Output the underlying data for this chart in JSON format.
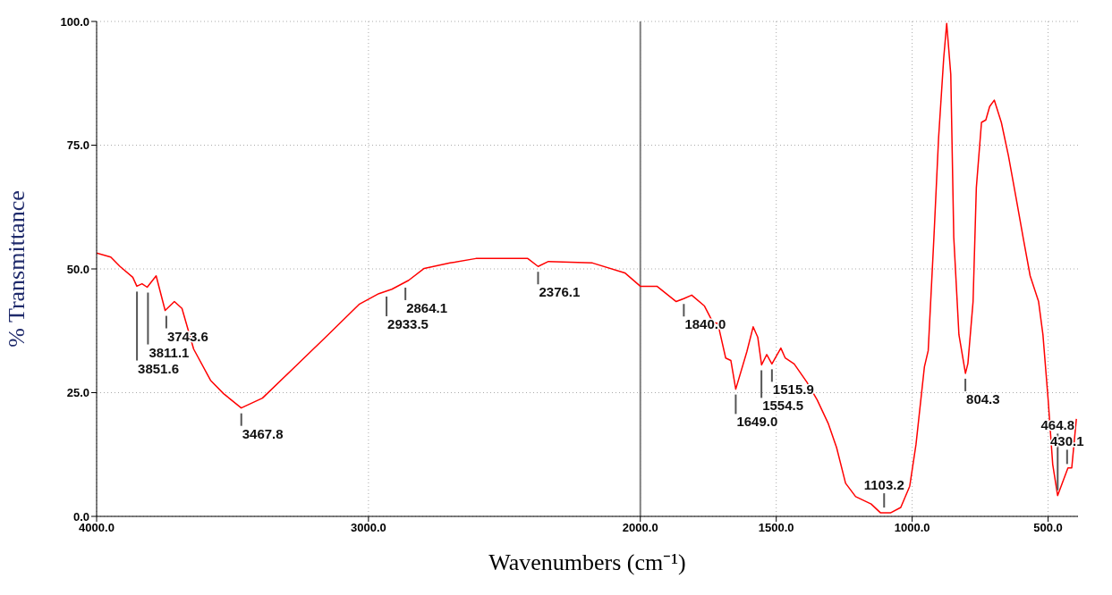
{
  "chart_data": {
    "type": "line",
    "xlabel": "Wavenumbers (cm⁻¹)",
    "ylabel": "% Transmittance",
    "xlim": [
      4000,
      390
    ],
    "ylim": [
      0,
      100
    ],
    "xticks": [
      {
        "value": 4000,
        "label": "4000.0"
      },
      {
        "value": 3000,
        "label": "3000.0"
      },
      {
        "value": 2000,
        "label": "2000.0"
      },
      {
        "value": 1500,
        "label": "1500.0"
      },
      {
        "value": 1000,
        "label": "1000.0"
      },
      {
        "value": 500,
        "label": "500.0"
      }
    ],
    "yticks": [
      {
        "value": 0,
        "label": "0.0"
      },
      {
        "value": 25,
        "label": "25.0"
      },
      {
        "value": 50,
        "label": "50.0"
      },
      {
        "value": 75,
        "label": "75.0"
      },
      {
        "value": 100,
        "label": "100.0"
      }
    ],
    "grid": true,
    "marker": "none",
    "line_style": "solid",
    "ref_lines": [
      {
        "axis": "x",
        "value": 2000,
        "label": null,
        "color": "#808080",
        "line_style": "solid"
      }
    ],
    "series": [
      {
        "color": "#ff0000",
        "x": [
          4000,
          3948,
          3914,
          3867,
          3852,
          3833,
          3814,
          3781,
          3748,
          3714,
          3686,
          3643,
          3581,
          3533,
          3468,
          3390,
          3271,
          3152,
          3033,
          2962,
          2914,
          2852,
          2795,
          2700,
          2605,
          2414,
          2376,
          2338,
          2176,
          2057,
          2000,
          1939,
          1868,
          1840,
          1811,
          1764,
          1733,
          1715,
          1686,
          1667,
          1649,
          1608,
          1585,
          1568,
          1554,
          1535,
          1516,
          1483,
          1467,
          1434,
          1387,
          1349,
          1309,
          1278,
          1245,
          1208,
          1151,
          1116,
          1080,
          1042,
          1009,
          986,
          955,
          941,
          920,
          903,
          884,
          873,
          858,
          847,
          828,
          804,
          795,
          776,
          764,
          745,
          729,
          715,
          698,
          672,
          646,
          618,
          592,
          566,
          535,
          519,
          500,
          483,
          465,
          427,
          413,
          396
        ],
        "values": [
          53.2,
          52.4,
          50.5,
          48.3,
          46.5,
          47,
          46.3,
          48.6,
          41.6,
          43.4,
          42,
          33.8,
          27.5,
          24.8,
          21.9,
          23.9,
          30.2,
          36.5,
          42.9,
          45,
          45.9,
          47.7,
          50.1,
          51.2,
          52.1,
          52.1,
          50.5,
          51.5,
          51.2,
          49.2,
          46.5,
          46.5,
          43.4,
          44,
          44.7,
          42.5,
          39.2,
          39,
          32,
          31.5,
          25.7,
          33.3,
          38.3,
          36.2,
          30.6,
          32.7,
          30.8,
          34,
          32,
          30.8,
          27.1,
          23.5,
          18.8,
          13.9,
          6.7,
          4,
          2.5,
          0.7,
          0.7,
          1.8,
          6.1,
          14.5,
          30.2,
          33.5,
          56.4,
          76.3,
          92.6,
          99.6,
          89.3,
          56.4,
          36.7,
          28.9,
          30.9,
          43.4,
          66.4,
          79.6,
          80.1,
          82.8,
          84.1,
          79.6,
          72.9,
          64.4,
          56.4,
          48.6,
          43.4,
          36.7,
          23.7,
          10.5,
          4.2,
          9.8,
          9.8,
          19.7
        ]
      }
    ],
    "annotations": [
      {
        "text": "3851.6",
        "x": 3851.6,
        "y": 46.5
      },
      {
        "text": "3811.1",
        "x": 3811.1,
        "y": 46.3
      },
      {
        "text": "3743.6",
        "x": 3743.6,
        "y": 41.6
      },
      {
        "text": "3467.8",
        "x": 3467.8,
        "y": 21.9
      },
      {
        "text": "2933.5",
        "x": 2933.5,
        "y": 45.5
      },
      {
        "text": "2864.1",
        "x": 2864.1,
        "y": 47.3
      },
      {
        "text": "2376.1",
        "x": 2376.1,
        "y": 50.5
      },
      {
        "text": "1840.0",
        "x": 1840.0,
        "y": 44
      },
      {
        "text": "1649.0",
        "x": 1649.0,
        "y": 25.7
      },
      {
        "text": "1554.5",
        "x": 1554.5,
        "y": 30.6
      },
      {
        "text": "1515.9",
        "x": 1515.9,
        "y": 30.8
      },
      {
        "text": "1103.2",
        "x": 1103.2,
        "y": 0.7
      },
      {
        "text": "804.3",
        "x": 804.3,
        "y": 28.9
      },
      {
        "text": "464.8",
        "x": 464.8,
        "y": 4.2
      },
      {
        "text": "430.1",
        "x": 430.1,
        "y": 9.5
      }
    ]
  }
}
